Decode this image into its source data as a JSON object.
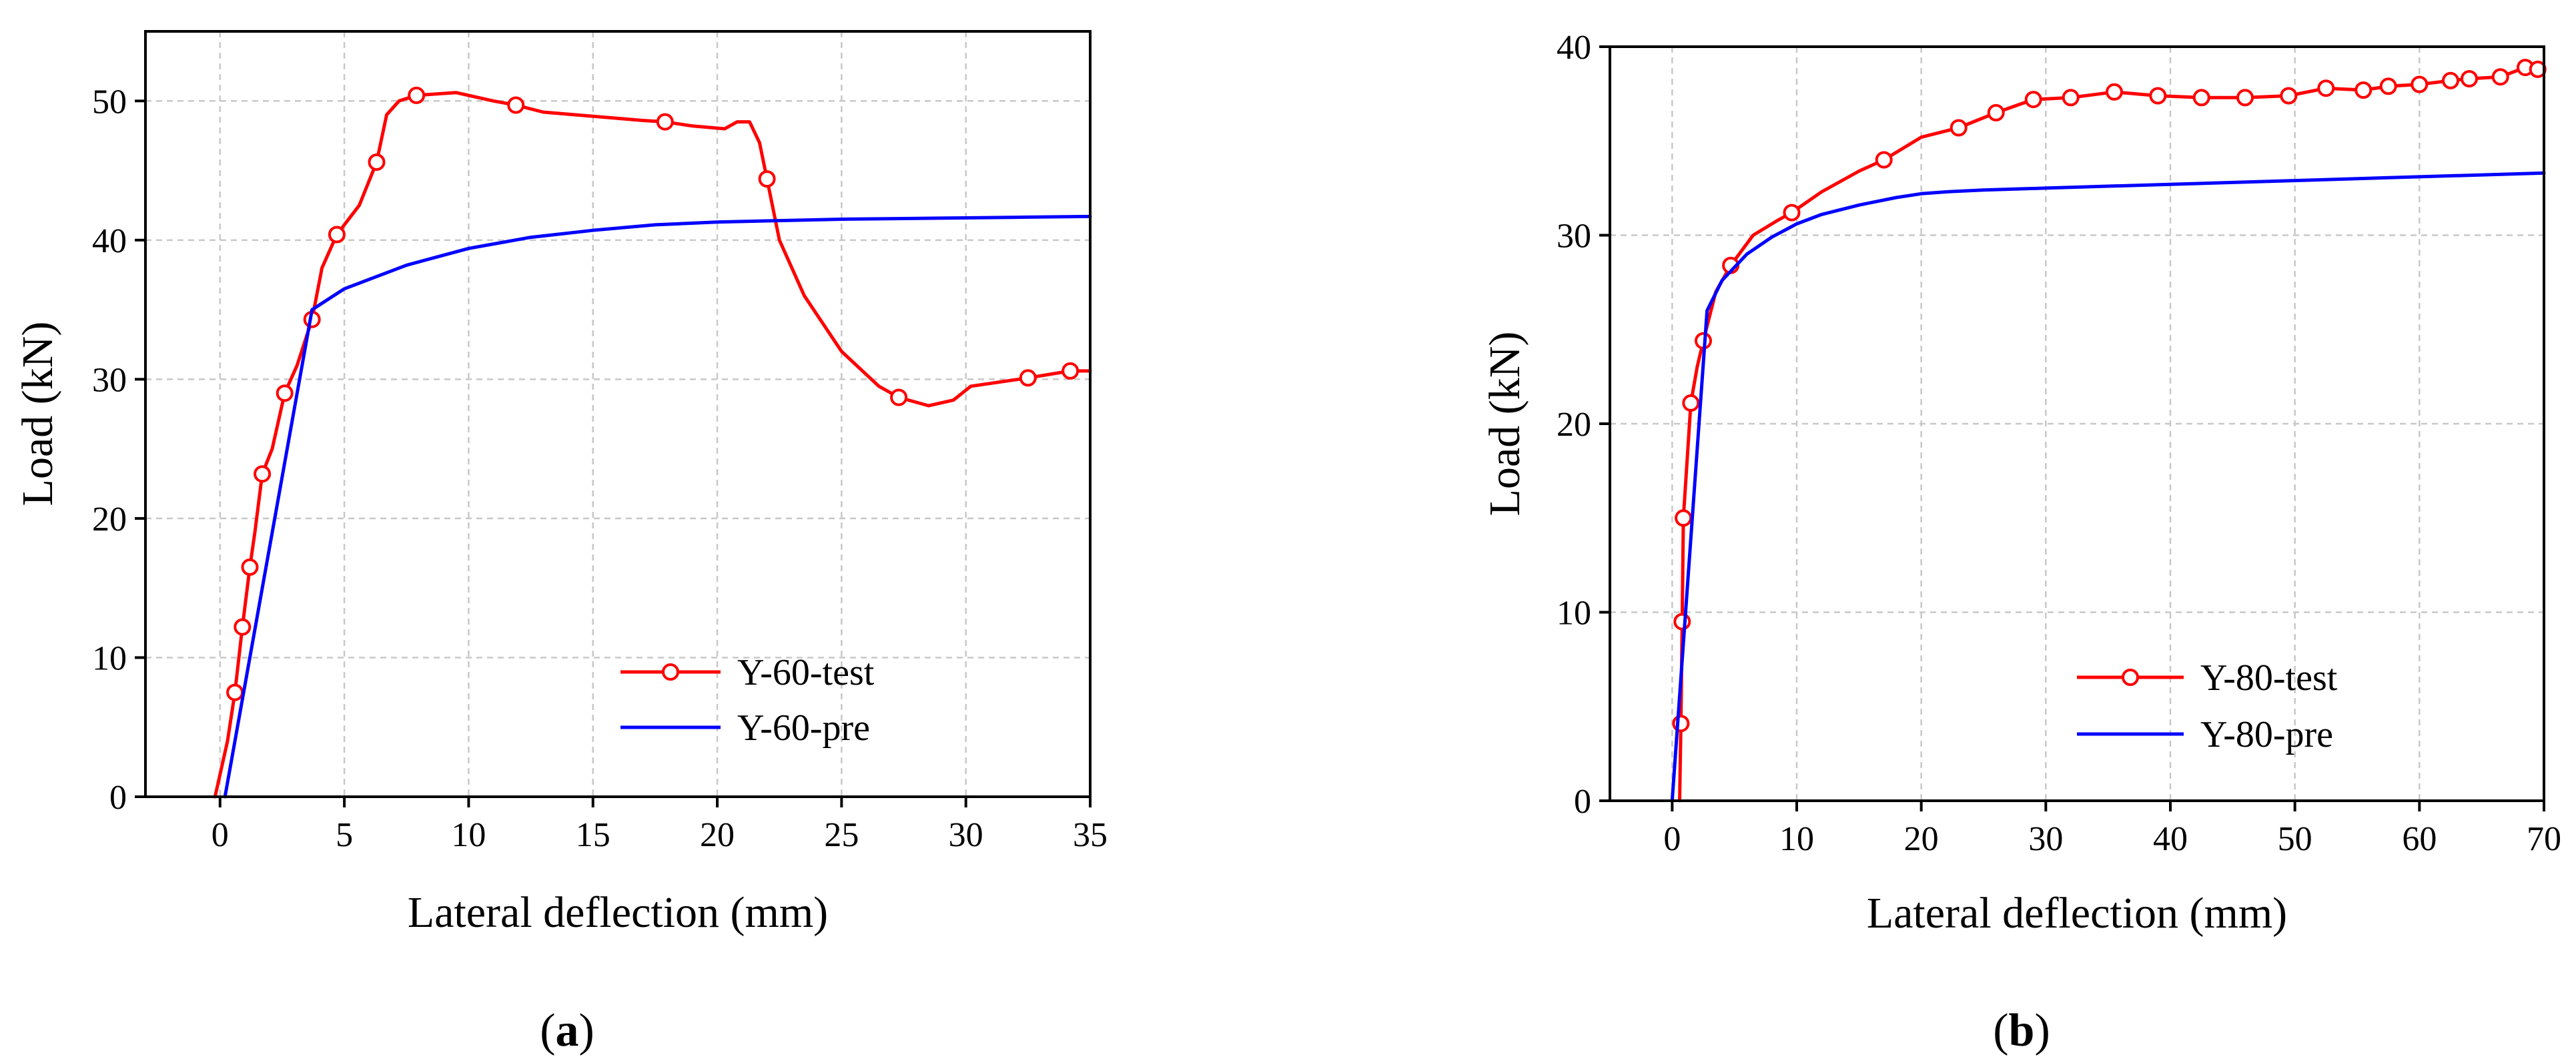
{
  "chart_data": [
    {
      "type": "line",
      "caption_letter": "a",
      "title": "",
      "xlabel": "Lateral deflection (mm)",
      "ylabel": "Load (kN)",
      "xlim": [
        -3,
        35
      ],
      "ylim": [
        0,
        55
      ],
      "xticks": [
        0,
        5,
        10,
        15,
        20,
        25,
        30,
        35
      ],
      "yticks": [
        0,
        10,
        20,
        30,
        40,
        50
      ],
      "xtick_labels": [
        "0",
        "5",
        "10",
        "15",
        "20",
        "25",
        "30",
        "35"
      ],
      "ytick_labels": [
        "0",
        "10",
        "20",
        "30",
        "40",
        "50"
      ],
      "grid": true,
      "legend_position": "bottom-right",
      "series": [
        {
          "name": "Y-60-test",
          "color": "#ff0000",
          "marker": "open-circle",
          "x": [
            -0.2,
            0.3,
            0.6,
            0.9,
            1.2,
            1.4,
            1.7,
            2.1,
            2.6,
            3.1,
            3.7,
            4.1,
            4.7,
            5.6,
            6.3,
            6.7,
            7.2,
            7.9,
            9.5,
            11.0,
            11.9,
            13.0,
            15.0,
            17.0,
            17.9,
            19.0,
            20.3,
            20.8,
            21.3,
            21.7,
            22.0,
            22.5,
            23.5,
            25.0,
            26.5,
            27.3,
            28.5,
            29.5,
            30.2,
            32.5,
            34.2,
            35.0
          ],
          "y": [
            0,
            4.0,
            7.5,
            12.2,
            16.5,
            19.0,
            23.2,
            25.0,
            29.0,
            31.0,
            34.3,
            38.0,
            40.4,
            42.5,
            45.6,
            49.0,
            50.0,
            50.4,
            50.6,
            50.0,
            49.7,
            49.2,
            48.9,
            48.6,
            48.5,
            48.2,
            48.0,
            48.5,
            48.5,
            47.0,
            44.4,
            40.0,
            36.0,
            32.0,
            29.5,
            28.7,
            28.1,
            28.5,
            29.5,
            30.1,
            30.6,
            30.6
          ],
          "marker_x": [
            0.6,
            0.9,
            1.2,
            1.7,
            2.6,
            3.7,
            4.7,
            6.3,
            7.9,
            11.9,
            17.9,
            22.0,
            27.3,
            32.5,
            34.2
          ],
          "marker_y": [
            7.5,
            12.2,
            16.5,
            23.2,
            29.0,
            34.3,
            40.4,
            45.6,
            50.4,
            49.7,
            48.5,
            44.4,
            28.7,
            30.1,
            30.6
          ]
        },
        {
          "name": "Y-60-pre",
          "color": "#0000ff",
          "marker": "none",
          "x": [
            0.2,
            3.7,
            5,
            7.5,
            10,
            12.5,
            15,
            17.5,
            20,
            22.5,
            25,
            27.5,
            30,
            32.5,
            35
          ],
          "y": [
            0,
            35.0,
            36.5,
            38.2,
            39.4,
            40.2,
            40.7,
            41.1,
            41.3,
            41.4,
            41.5,
            41.55,
            41.6,
            41.65,
            41.7
          ]
        }
      ]
    },
    {
      "type": "line",
      "caption_letter": "b",
      "title": "",
      "xlabel": "Lateral deflection (mm)",
      "ylabel": "Load (kN)",
      "xlim": [
        -5,
        70
      ],
      "ylim": [
        0,
        40
      ],
      "xticks": [
        0,
        10,
        20,
        30,
        40,
        50,
        60,
        70
      ],
      "yticks": [
        0,
        10,
        20,
        30,
        40
      ],
      "xtick_labels": [
        "0",
        "10",
        "20",
        "30",
        "40",
        "50",
        "60",
        "70"
      ],
      "ytick_labels": [
        "0",
        "10",
        "20",
        "30",
        "40"
      ],
      "grid": true,
      "legend_position": "bottom-right",
      "series": [
        {
          "name": "Y-80-test",
          "color": "#ff0000",
          "marker": "open-circle",
          "x": [
            0.6,
            0.7,
            0.8,
            0.9,
            1.5,
            2.0,
            2.5,
            3.5,
            4.7,
            6.5,
            8.5,
            9.6,
            12,
            15,
            17,
            20,
            23,
            26,
            29,
            32,
            35.5,
            39,
            42.5,
            46,
            49.5,
            52.5,
            55.5,
            57.5,
            60,
            62.5,
            64,
            66.5,
            68.5,
            69.5,
            70
          ],
          "y": [
            0,
            4.1,
            9.5,
            15.0,
            21.1,
            23.0,
            24.4,
            27.0,
            28.4,
            30.0,
            30.8,
            31.2,
            32.3,
            33.4,
            34.0,
            35.2,
            35.7,
            36.5,
            37.2,
            37.3,
            37.6,
            37.4,
            37.3,
            37.3,
            37.4,
            37.8,
            37.7,
            37.9,
            38.0,
            38.2,
            38.3,
            38.4,
            38.9,
            38.8,
            38.6
          ],
          "marker_x": [
            0.7,
            0.8,
            0.9,
            1.5,
            2.5,
            4.7,
            9.6,
            17,
            23,
            26,
            29,
            32,
            35.5,
            39,
            42.5,
            46,
            49.5,
            52.5,
            55.5,
            57.5,
            60,
            62.5,
            64,
            66.5,
            68.5,
            69.5
          ],
          "marker_y": [
            4.1,
            9.5,
            15.0,
            21.1,
            24.4,
            28.4,
            31.2,
            34.0,
            35.7,
            36.5,
            37.2,
            37.3,
            37.6,
            37.4,
            37.3,
            37.3,
            37.4,
            37.8,
            37.7,
            37.9,
            38.0,
            38.2,
            38.3,
            38.4,
            38.9,
            38.8
          ]
        },
        {
          "name": "Y-80-pre",
          "color": "#0000ff",
          "marker": "none",
          "x": [
            0,
            2.8,
            4,
            6,
            8,
            10,
            12,
            15,
            18,
            20,
            22,
            25,
            30,
            40,
            50,
            60,
            70
          ],
          "y": [
            0,
            26.0,
            27.6,
            29.0,
            29.9,
            30.6,
            31.1,
            31.6,
            32.0,
            32.2,
            32.3,
            32.4,
            32.5,
            32.7,
            32.9,
            33.1,
            33.3
          ]
        }
      ]
    }
  ]
}
